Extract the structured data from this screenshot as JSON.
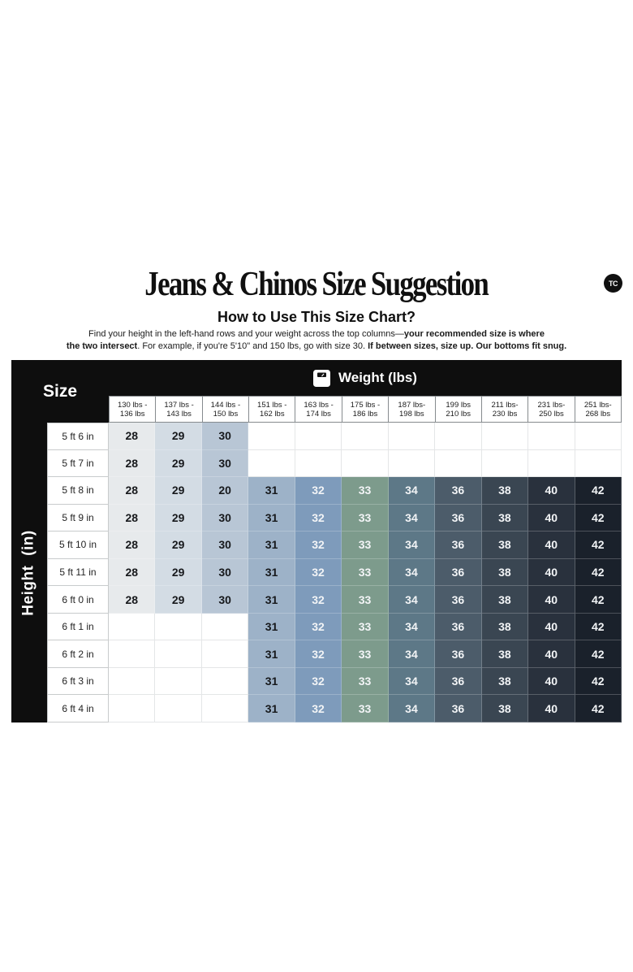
{
  "header": {
    "title": "Jeans & Chinos Size Suggestion",
    "logo_text": "TC",
    "subtitle": "How to Use This Size Chart?",
    "instruction_lines": [
      [
        {
          "text": "Find your height in the left-hand rows and your weight across the top columns—",
          "bold": false
        },
        {
          "text": "your recommended size is where",
          "bold": true
        }
      ],
      [
        {
          "text": "the two intersect",
          "bold": true
        },
        {
          "text": ". For example, if you're 5'10\" and 150 lbs, go with size 30. ",
          "bold": false
        },
        {
          "text": "If between sizes, size up. Our bottoms fit snug.",
          "bold": true
        }
      ]
    ]
  },
  "table": {
    "corner_label": "Size",
    "weight_axis_label": "Weight (lbs)",
    "weight_axis_icon": "scale-icon",
    "height_axis_label": "Height (in)",
    "weight_columns": [
      {
        "line1": "130 lbs -",
        "line2": "136 lbs"
      },
      {
        "line1": "137 lbs -",
        "line2": "143 lbs"
      },
      {
        "line1": "144 lbs -",
        "line2": "150 lbs"
      },
      {
        "line1": "151 lbs -",
        "line2": "162 lbs"
      },
      {
        "line1": "163 lbs -",
        "line2": "174 lbs"
      },
      {
        "line1": "175 lbs -",
        "line2": "186 lbs"
      },
      {
        "line1": "187 lbs-",
        "line2": "198 lbs"
      },
      {
        "line1": "199 lbs",
        "line2": "210 lbs"
      },
      {
        "line1": "211 lbs-",
        "line2": "230 lbs"
      },
      {
        "line1": "231 lbs-",
        "line2": "250 lbs"
      },
      {
        "line1": "251 lbs-",
        "line2": "268 lbs"
      }
    ],
    "column_colors": [
      "#e7eaec",
      "#d3dce4",
      "#b8c6d5",
      "#9db2c8",
      "#7e9bbb",
      "#7d9b8c",
      "#5d7887",
      "#4c5c6a",
      "#3a4652",
      "#29313d",
      "#1a212b"
    ],
    "column_text_colors": [
      "#17191c",
      "#17191c",
      "#17191c",
      "#17191c",
      "#f2f4f6",
      "#f2f4f6",
      "#f2f4f6",
      "#f2f4f6",
      "#f2f4f6",
      "#f2f4f6",
      "#f2f4f6"
    ],
    "header_bg": "#0e0e0e",
    "header_text": "#ffffff"
  },
  "chart_data": {
    "type": "table",
    "title": "Jeans & Chinos Size Suggestion",
    "xlabel": "Weight (lbs)",
    "ylabel": "Height (in)",
    "columns": [
      "130 lbs - 136 lbs",
      "137 lbs - 143 lbs",
      "144 lbs - 150 lbs",
      "151 lbs - 162 lbs",
      "163 lbs - 174 lbs",
      "175 lbs - 186 lbs",
      "187 lbs- 198 lbs",
      "199 lbs 210 lbs",
      "211 lbs- 230 lbs",
      "231 lbs- 250 lbs",
      "251 lbs- 268 lbs"
    ],
    "rows": [
      "5 ft 6 in",
      "5 ft 7 in",
      "5 ft 8 in",
      "5 ft 9 in",
      "5 ft 10 in",
      "5 ft 11 in",
      "6 ft 0 in",
      "6 ft 1 in",
      "6 ft 2 in",
      "6 ft 3 in",
      "6 ft 4 in"
    ],
    "values": [
      [
        "28",
        "29",
        "30",
        "",
        "",
        "",
        "",
        "",
        "",
        "",
        ""
      ],
      [
        "28",
        "29",
        "30",
        "",
        "",
        "",
        "",
        "",
        "",
        "",
        ""
      ],
      [
        "28",
        "29",
        "20",
        "31",
        "32",
        "33",
        "34",
        "36",
        "38",
        "40",
        "42"
      ],
      [
        "28",
        "29",
        "30",
        "31",
        "32",
        "33",
        "34",
        "36",
        "38",
        "40",
        "42"
      ],
      [
        "28",
        "29",
        "30",
        "31",
        "32",
        "33",
        "34",
        "36",
        "38",
        "40",
        "42"
      ],
      [
        "28",
        "29",
        "30",
        "31",
        "32",
        "33",
        "34",
        "36",
        "38",
        "40",
        "42"
      ],
      [
        "28",
        "29",
        "30",
        "31",
        "32",
        "33",
        "34",
        "36",
        "38",
        "40",
        "42"
      ],
      [
        "",
        "",
        "",
        "31",
        "32",
        "33",
        "34",
        "36",
        "38",
        "40",
        "42"
      ],
      [
        "",
        "",
        "",
        "31",
        "32",
        "33",
        "34",
        "36",
        "38",
        "40",
        "42"
      ],
      [
        "",
        "",
        "",
        "31",
        "32",
        "33",
        "34",
        "36",
        "38",
        "40",
        "42"
      ],
      [
        "",
        "",
        "",
        "31",
        "32",
        "33",
        "34",
        "36",
        "38",
        "40",
        "42"
      ]
    ]
  }
}
